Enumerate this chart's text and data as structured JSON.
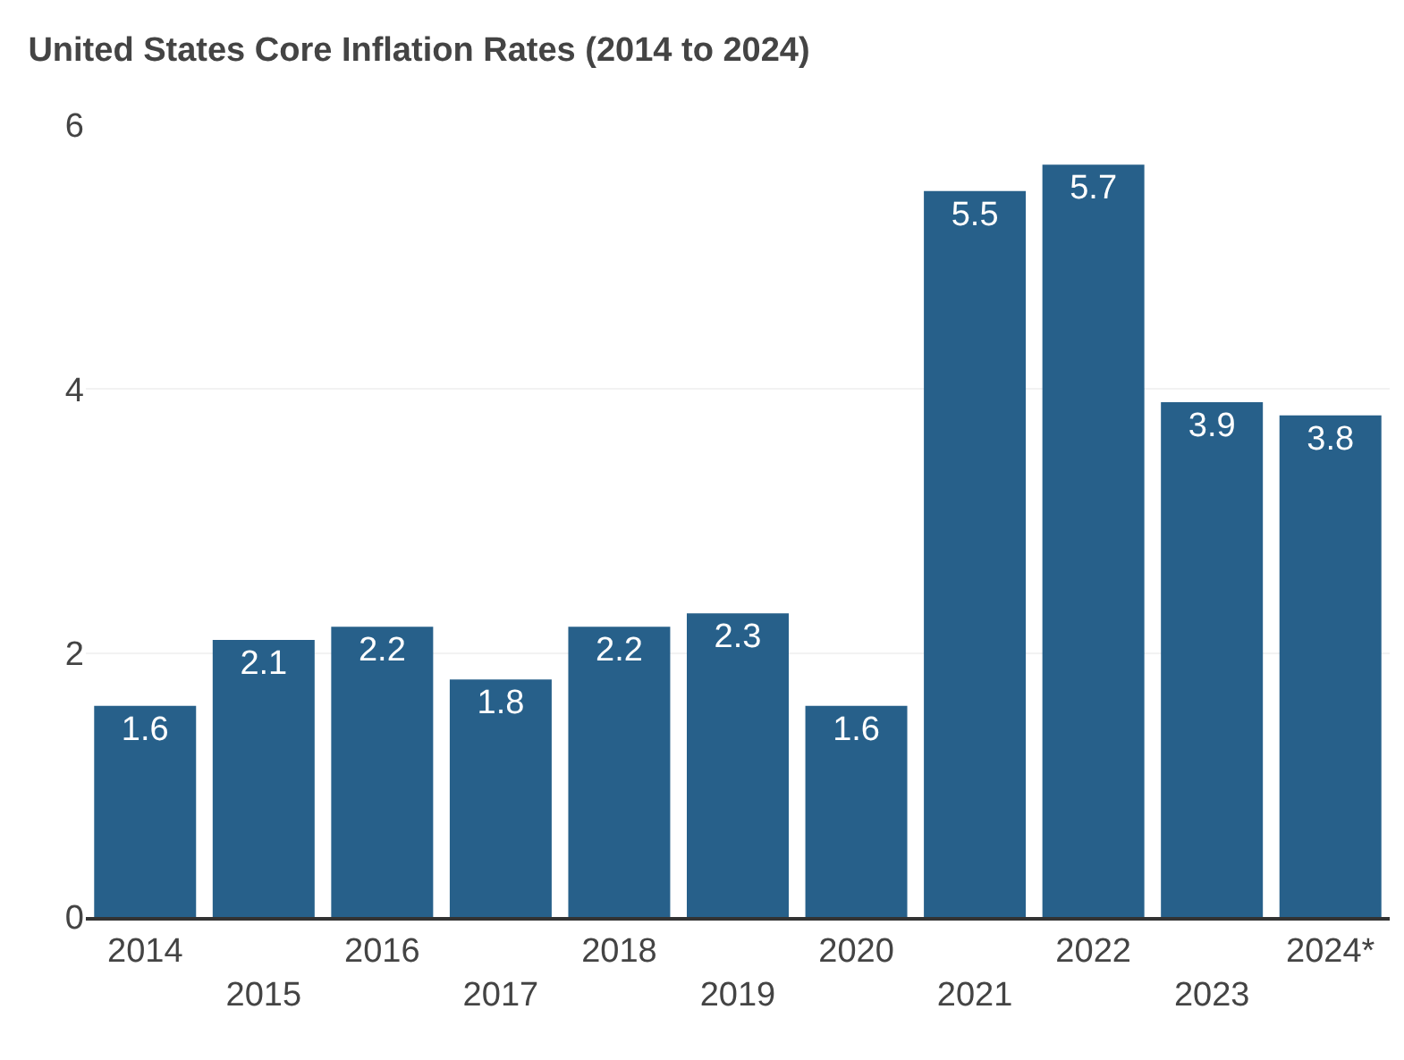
{
  "chart_data": {
    "type": "bar",
    "title": "United States Core Inflation Rates (2014 to 2024)",
    "categories": [
      "2014",
      "2015",
      "2016",
      "2017",
      "2018",
      "2019",
      "2020",
      "2021",
      "2022",
      "2023",
      "2024*"
    ],
    "values": [
      1.6,
      2.1,
      2.2,
      1.8,
      2.2,
      2.3,
      1.6,
      5.5,
      5.7,
      3.9,
      3.8
    ],
    "color": "#27608a",
    "ylim": [
      0,
      6
    ],
    "yticks": [
      0,
      2,
      4,
      6
    ],
    "grid": "y",
    "data_labels": true
  }
}
